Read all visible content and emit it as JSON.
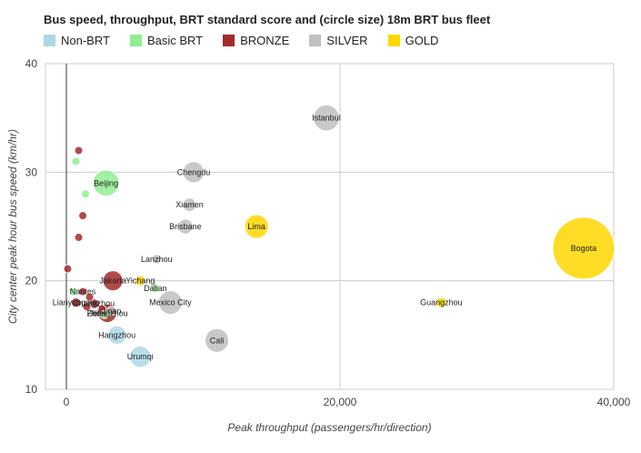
{
  "chart_data": {
    "type": "scatter",
    "title": "Bus speed, throughput, BRT standard score and (circle size) 18m BRT bus fleet",
    "xlabel": "Peak throughput (passengers/hr/direction)",
    "ylabel": "City center peak hour bus speed (km/hr)",
    "xlim": [
      -1500,
      40000
    ],
    "ylim": [
      10,
      40
    ],
    "x_ticks": [
      {
        "value": 0,
        "label": "0"
      },
      {
        "value": 20000,
        "label": "20,000"
      },
      {
        "value": 40000,
        "label": "40,000"
      }
    ],
    "y_ticks": [
      {
        "value": 10,
        "label": "10"
      },
      {
        "value": 20,
        "label": "20"
      },
      {
        "value": 30,
        "label": "30"
      },
      {
        "value": 40,
        "label": "40"
      }
    ],
    "grid": true,
    "legend_placement": "top",
    "categories": [
      {
        "name": "Non-BRT",
        "color": "#add8e6"
      },
      {
        "name": "Basic BRT",
        "color": "#90ee90"
      },
      {
        "name": "BRONZE",
        "color": "#a52a2a"
      },
      {
        "name": "SILVER",
        "color": "#c0c0c0"
      },
      {
        "name": "GOLD",
        "color": "#ffd700"
      }
    ],
    "points": [
      {
        "label": "Istanbul",
        "x": 19000,
        "y": 35,
        "category": "SILVER",
        "size": 300
      },
      {
        "label": "Chengdu",
        "x": 9300,
        "y": 30,
        "category": "SILVER",
        "size": 200
      },
      {
        "label": "Beijing",
        "x": 2900,
        "y": 29,
        "category": "Basic BRT",
        "size": 300
      },
      {
        "label": "Xiamen",
        "x": 9000,
        "y": 27,
        "category": "SILVER",
        "size": 80
      },
      {
        "label": "Brisbane",
        "x": 8700,
        "y": 25,
        "category": "SILVER",
        "size": 100
      },
      {
        "label": "Lima",
        "x": 13900,
        "y": 25,
        "category": "GOLD",
        "size": 250
      },
      {
        "label": "Bogota",
        "x": 37800,
        "y": 23,
        "category": "GOLD",
        "size": 1700
      },
      {
        "label": "Lanzhou",
        "x": 6600,
        "y": 22,
        "category": "SILVER",
        "size": 40
      },
      {
        "label": "Jakarta",
        "x": 3400,
        "y": 20,
        "category": "BRONZE",
        "size": 180
      },
      {
        "label": "Yichang",
        "x": 5400,
        "y": 20,
        "category": "GOLD",
        "size": 45
      },
      {
        "label": "Dalian",
        "x": 6500,
        "y": 19.3,
        "category": "Basic BRT",
        "size": 20
      },
      {
        "label": "Mexico City",
        "x": 7600,
        "y": 18,
        "category": "SILVER",
        "size": 250
      },
      {
        "label": "Guangzhou",
        "x": 27400,
        "y": 18,
        "category": "GOLD",
        "size": 45
      },
      {
        "label": "Nantes",
        "x": 1200,
        "y": 19,
        "category": "BRONZE",
        "size": 20
      },
      {
        "label": "Lianyungang",
        "x": 700,
        "y": 18,
        "category": "BRONZE",
        "size": 40
      },
      {
        "label": "Changzhou",
        "x": 2000,
        "y": 17.9,
        "category": "BRONZE",
        "size": 40
      },
      {
        "label": "Jinan",
        "x": 3300,
        "y": 17.2,
        "category": "SILVER",
        "size": 40
      },
      {
        "label": "Hefei",
        "x": 2200,
        "y": 17,
        "category": "SILVER",
        "size": 30
      },
      {
        "label": "Zhengzhou",
        "x": 3000,
        "y": 17,
        "category": "BRONZE",
        "size": 150
      },
      {
        "label": "Hangzhou",
        "x": 3700,
        "y": 15,
        "category": "Non-BRT",
        "size": 150
      },
      {
        "label": "Cali",
        "x": 11000,
        "y": 14.5,
        "category": "SILVER",
        "size": 250
      },
      {
        "label": "Urumqi",
        "x": 5400,
        "y": 13,
        "category": "Non-BRT",
        "size": 200
      },
      {
        "label": "",
        "x": 900,
        "y": 32,
        "category": "BRONZE",
        "size": 30
      },
      {
        "label": "",
        "x": 700,
        "y": 31,
        "category": "Basic BRT",
        "size": 30
      },
      {
        "label": "",
        "x": 1400,
        "y": 28,
        "category": "Basic BRT",
        "size": 30
      },
      {
        "label": "",
        "x": 1200,
        "y": 26,
        "category": "BRONZE",
        "size": 30
      },
      {
        "label": "",
        "x": 900,
        "y": 24,
        "category": "BRONZE",
        "size": 30
      },
      {
        "label": "",
        "x": 100,
        "y": 21.1,
        "category": "BRONZE",
        "size": 30
      },
      {
        "label": "",
        "x": 500,
        "y": 19,
        "category": "Basic BRT",
        "size": 30
      },
      {
        "label": "",
        "x": 1700,
        "y": 18.5,
        "category": "BRONZE",
        "size": 25
      },
      {
        "label": "",
        "x": 2600,
        "y": 17.4,
        "category": "BRONZE",
        "size": 25
      },
      {
        "label": "",
        "x": 2800,
        "y": 16.9,
        "category": "Basic BRT",
        "size": 25
      },
      {
        "label": "",
        "x": 1500,
        "y": 17.6,
        "category": "BRONZE",
        "size": 25
      }
    ]
  }
}
